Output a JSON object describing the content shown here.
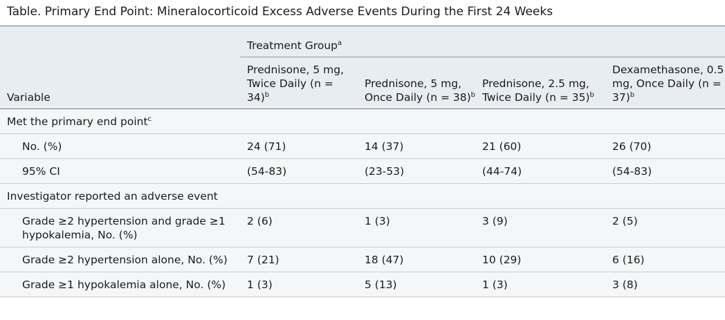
{
  "title": "Table. Primary End Point: Mineralocorticoid Excess Adverse Events During the First 24 Weeks",
  "header": {
    "group_label": "Treatment Group",
    "group_note": "a",
    "variable_label": "Variable",
    "columns": [
      {
        "label": "Prednisone, 5 mg, Twice Daily (n = 34)",
        "note": "b"
      },
      {
        "label": "Prednisone, 5 mg, Once Daily (n = 38)",
        "note": "b"
      },
      {
        "label": "Prednisone, 2.5 mg, Twice Daily (n = 35)",
        "note": "b"
      },
      {
        "label": "Dexamethasone, 0.5 mg, Once Daily (n = 37)",
        "note": "b"
      }
    ]
  },
  "sections": [
    {
      "label": "Met the primary end point",
      "note": "c",
      "rows": [
        {
          "label": "No. (%)",
          "values": [
            "24 (71)",
            "14 (37)",
            "21 (60)",
            "26 (70)"
          ]
        },
        {
          "label": "95% CI",
          "values": [
            "(54-83)",
            "(23-53)",
            "(44-74)",
            "(54-83)"
          ]
        }
      ]
    },
    {
      "label": "Investigator reported an adverse event",
      "rows": [
        {
          "label": "Grade ≥2 hypertension and grade ≥1 hypokalemia, No. (%)",
          "values": [
            "2 (6)",
            "1 (3)",
            "3 (9)",
            "2 (5)"
          ]
        },
        {
          "label": "Grade ≥2 hypertension alone, No. (%)",
          "values": [
            "7 (21)",
            "18 (47)",
            "10 (29)",
            "6 (16)"
          ]
        },
        {
          "label": "Grade ≥1 hypokalemia alone, No. (%)",
          "values": [
            "1 (3)",
            "5 (13)",
            "1 (3)",
            "3 (8)"
          ]
        }
      ]
    }
  ]
}
